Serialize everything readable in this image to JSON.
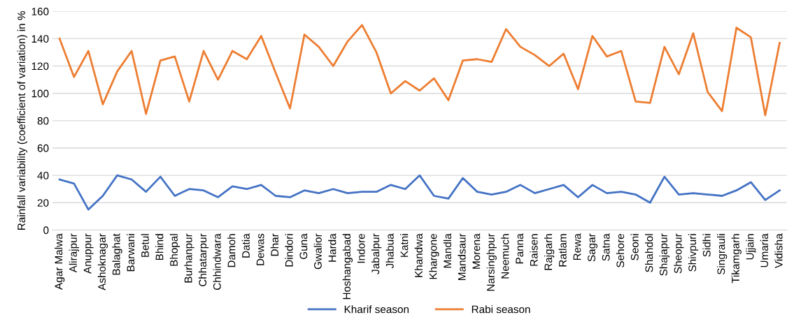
{
  "chart_data": {
    "type": "line",
    "ylabel": "Rainfall variability (coefficient of variation) in %",
    "categories": [
      "Agar Malwa",
      "Alirajpur",
      "Anuppur",
      "Ashoknagar",
      "Balaghat",
      "Barwani",
      "Betul",
      "Bhind",
      "Bhopal",
      "Burhanpur",
      "Chhatarpur",
      "Chhindwara",
      "Damoh",
      "Datia",
      "Dewas",
      "Dhar",
      "Dindori",
      "Guna",
      "Gwalior",
      "Harda",
      "Hoshangabad",
      "Indore",
      "Jabalpur",
      "Jhabua",
      "Katni",
      "Khandwa",
      "Khargone",
      "Mandla",
      "Mandsaur",
      "Morena",
      "Narsinghpur",
      "Neemuch",
      "Panna",
      "Raisen",
      "Rajgarh",
      "Ratlam",
      "Rewa",
      "Sagar",
      "Satna",
      "Sehore",
      "Seoni",
      "Shahdol",
      "Shajapur",
      "Sheopur",
      "Shivpuri",
      "Sidhi",
      "Singrauli",
      "Tikamgarh",
      "Ujjain",
      "Umaria",
      "Vidisha"
    ],
    "series": [
      {
        "name": "Kharif season",
        "color": "#4472c4",
        "values": [
          37,
          34,
          15,
          25,
          40,
          37,
          28,
          39,
          25,
          30,
          29,
          24,
          32,
          30,
          33,
          25,
          24,
          29,
          27,
          30,
          27,
          28,
          28,
          33,
          30,
          40,
          25,
          23,
          38,
          28,
          26,
          28,
          33,
          27,
          30,
          33,
          24,
          33,
          27,
          28,
          26,
          20,
          39,
          26,
          27,
          26,
          25,
          29,
          35,
          22,
          29
        ]
      },
      {
        "name": "Rabi season",
        "color": "#ed7d31",
        "values": [
          140,
          112,
          131,
          92,
          116,
          131,
          85,
          124,
          127,
          94,
          131,
          110,
          131,
          125,
          142,
          115,
          89,
          143,
          134,
          120,
          138,
          150,
          130,
          100,
          109,
          102,
          111,
          95,
          124,
          125,
          123,
          147,
          134,
          128,
          120,
          129,
          103,
          142,
          127,
          131,
          94,
          93,
          134,
          114,
          144,
          101,
          87,
          148,
          141,
          84,
          137
        ]
      }
    ],
    "ylim": [
      0,
      160
    ],
    "yticks": [
      0,
      20,
      40,
      60,
      80,
      100,
      120,
      140,
      160
    ],
    "grid": "y",
    "legend": "bottom",
    "marker": "none",
    "line_style": "solid"
  }
}
